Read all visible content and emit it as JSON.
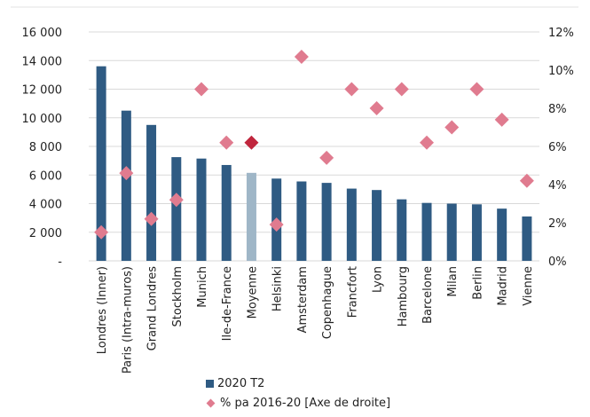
{
  "chart_data": {
    "type": "bar",
    "categories": [
      "Londres (Inner)",
      "Paris (Intra-muros)",
      "Grand Londres",
      "Stockholm",
      "Munich",
      "Ile-de-France",
      "Moyenne",
      "Helsinki",
      "Amsterdam",
      "Copenhague",
      "Francfort",
      "Lyon",
      "Hambourg",
      "Barcelone",
      "Milan",
      "Berlin",
      "Madrid",
      "Vienne"
    ],
    "series": [
      {
        "name": "2020 T2",
        "kind": "bar",
        "axis": "left",
        "color": "#2f5b83",
        "highlight_color": "#9fb6c7",
        "highlight_index": 6,
        "values": [
          13600,
          10500,
          9500,
          7250,
          7150,
          6700,
          6150,
          5750,
          5550,
          5450,
          5050,
          4950,
          4300,
          4050,
          4000,
          3950,
          3650,
          3100
        ]
      },
      {
        "name": "% pa 2016-20 [Axe de droite]",
        "kind": "scatter",
        "marker": "diamond",
        "axis": "right",
        "color": "#e07b8f",
        "highlight_color": "#c0263d",
        "highlight_index": 6,
        "values": [
          0.015,
          0.046,
          0.022,
          0.032,
          0.09,
          0.062,
          0.062,
          0.019,
          0.107,
          0.054,
          0.09,
          0.08,
          0.09,
          0.062,
          0.07,
          0.09,
          0.074,
          0.042
        ]
      }
    ],
    "y_left": {
      "ylim": [
        0,
        16000
      ],
      "ticks": [
        0,
        2000,
        4000,
        6000,
        8000,
        10000,
        12000,
        14000,
        16000
      ],
      "tick_labels": [
        "-",
        "2 000",
        "4 000",
        "6 000",
        "8 000",
        "10 000",
        "12 000",
        "14 000",
        "16 000"
      ]
    },
    "y_right": {
      "ylim": [
        0,
        0.12
      ],
      "ticks": [
        0,
        0.02,
        0.04,
        0.06,
        0.08,
        0.1,
        0.12
      ],
      "tick_labels": [
        "0%",
        "2%",
        "4%",
        "6%",
        "8%",
        "10%",
        "12%"
      ]
    },
    "grid": true,
    "gridline_color": "#d9d9d9",
    "legend_position": "bottom"
  },
  "legend": {
    "bar_label": "2020 T2",
    "marker_label": "% pa 2016-20 [Axe de droite]"
  }
}
